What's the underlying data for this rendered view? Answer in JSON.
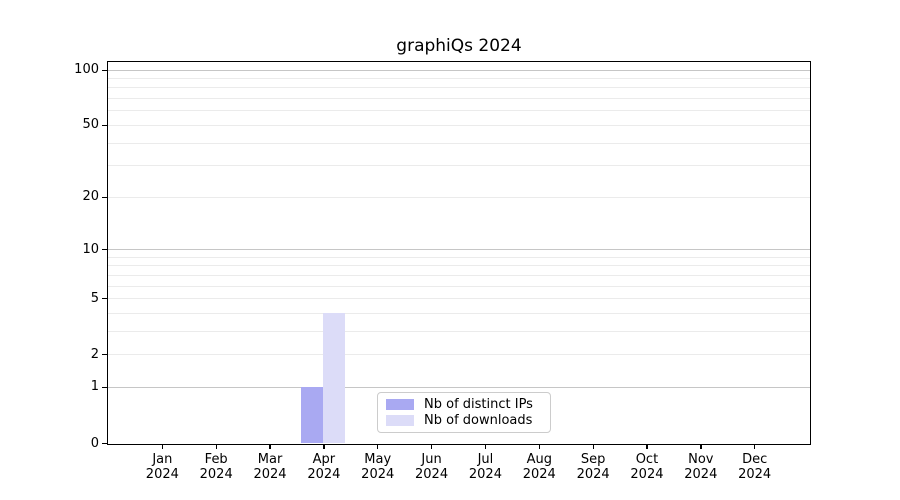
{
  "chart_data": {
    "type": "bar",
    "title": "graphiQs 2024",
    "categories": [
      "Jan",
      "Feb",
      "Mar",
      "Apr",
      "May",
      "Jun",
      "Jul",
      "Aug",
      "Sep",
      "Oct",
      "Nov",
      "Dec"
    ],
    "x_year": "2024",
    "series": [
      {
        "key": "distinct-ips",
        "name": "Nb of distinct IPs",
        "color": "#a9a9f2",
        "values": [
          0,
          0,
          0,
          1,
          0,
          0,
          0,
          0,
          0,
          0,
          0,
          0
        ]
      },
      {
        "key": "downloads",
        "name": "Nb of downloads",
        "color": "#dcdcf8",
        "values": [
          0,
          0,
          0,
          4,
          0,
          0,
          0,
          0,
          0,
          0,
          0,
          0
        ]
      }
    ],
    "y_axis": {
      "scale": "log1p",
      "tick_values": [
        0,
        1,
        2,
        5,
        10,
        20,
        50,
        100
      ],
      "major_grid_values": [
        1,
        10,
        100
      ],
      "minor_grid_values": [
        2,
        3,
        4,
        5,
        6,
        7,
        8,
        9,
        20,
        30,
        40,
        50,
        60,
        70,
        80,
        90
      ],
      "min": 0,
      "max": 110
    },
    "legend": {
      "position": "inside-bottom-center"
    },
    "grid": "horizontal-only",
    "colors": {
      "major_grid": "#c6c6c6",
      "minor_grid": "#ebebeb",
      "axis": "#000000",
      "background": "#ffffff"
    }
  }
}
